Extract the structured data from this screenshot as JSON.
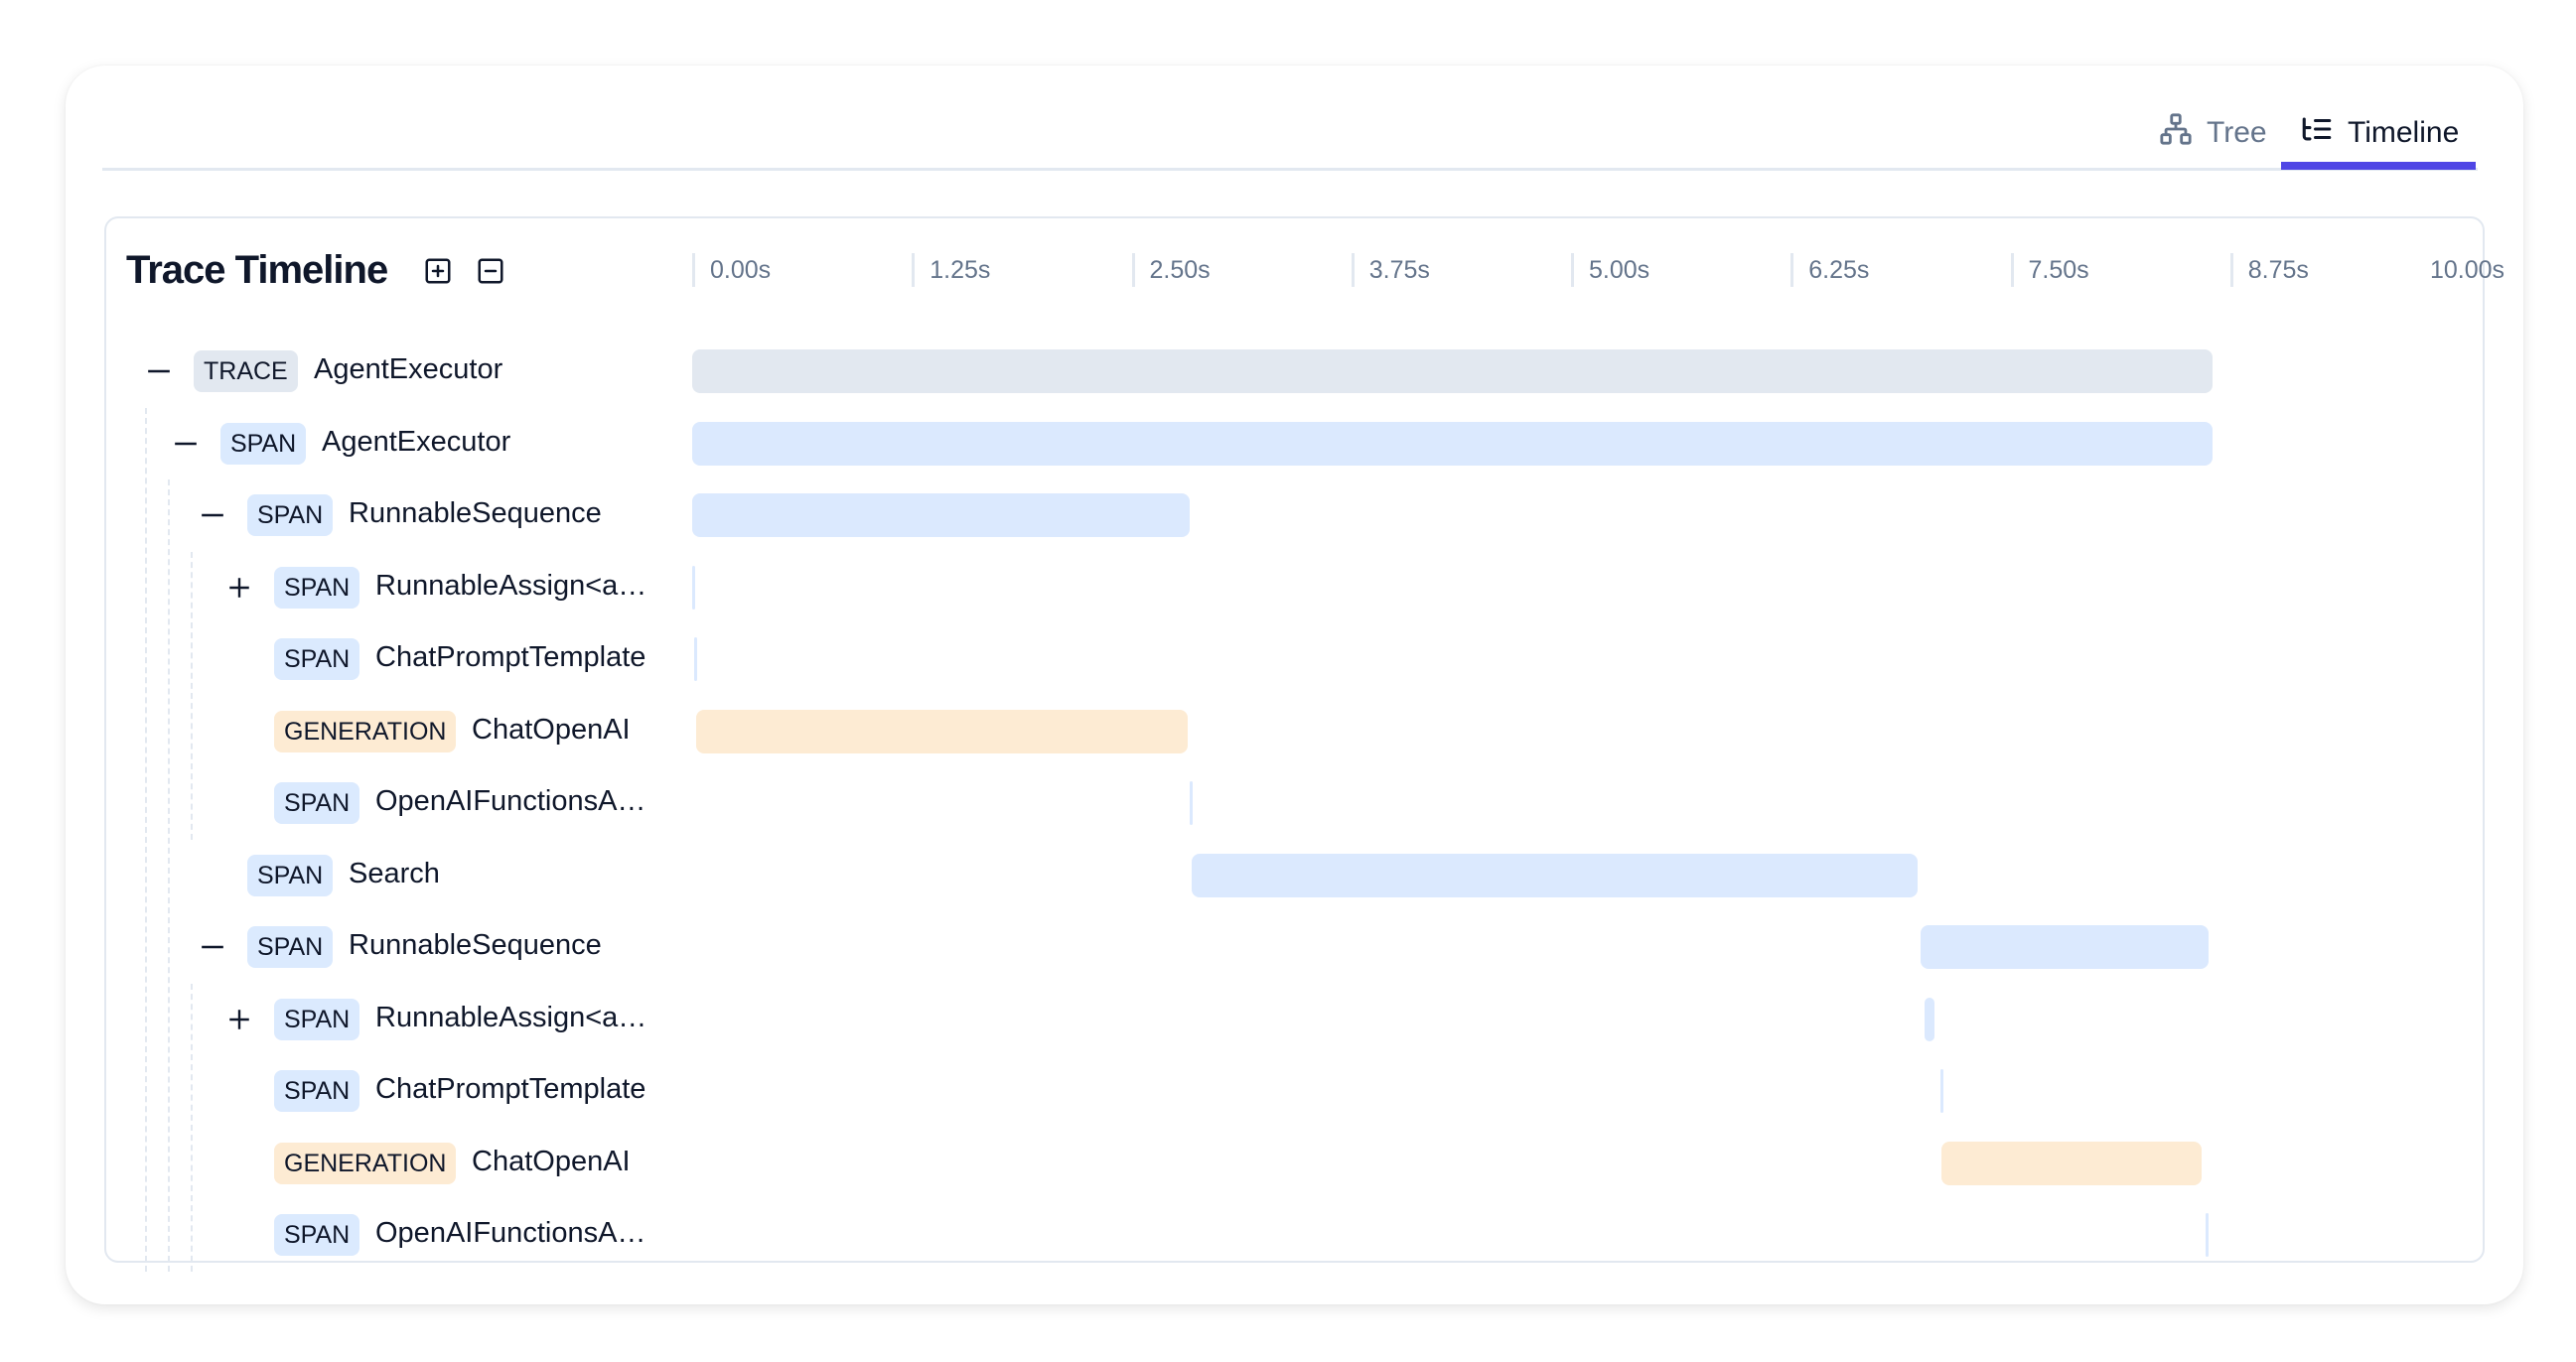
{
  "tabs": [
    {
      "label": "Tree",
      "icon": "tree-icon",
      "active": false
    },
    {
      "label": "Timeline",
      "icon": "timeline-icon",
      "active": true
    }
  ],
  "accent_color": "#4f46e5",
  "panel": {
    "title": "Trace Timeline",
    "expand_all_icon": "plus-square-icon",
    "collapse_all_icon": "minus-square-icon"
  },
  "chart_data": {
    "type": "gantt",
    "x_unit": "s",
    "xlim": [
      0,
      10
    ],
    "ticks": [
      "0.00s",
      "1.25s",
      "2.50s",
      "3.75s",
      "5.00s",
      "6.25s",
      "7.50s",
      "8.75s",
      "10.00s"
    ],
    "type_colors": {
      "TRACE": {
        "badge": "#e2e8f0",
        "bar": "#e2e8f0"
      },
      "SPAN": {
        "badge": "#dbeafe",
        "bar": "#dbe9fe"
      },
      "GENERATION": {
        "badge": "#fdebd3",
        "bar": "#fdebd3"
      }
    },
    "rows": [
      {
        "type": "TRACE",
        "name": "AgentExecutor",
        "depth": 0,
        "toggle": "collapse",
        "start": 0.0,
        "end": 8.65
      },
      {
        "type": "SPAN",
        "name": "AgentExecutor",
        "depth": 1,
        "toggle": "collapse",
        "start": 0.0,
        "end": 8.65
      },
      {
        "type": "SPAN",
        "name": "RunnableSequence",
        "depth": 2,
        "toggle": "collapse",
        "start": 0.0,
        "end": 2.83
      },
      {
        "type": "SPAN",
        "name": "RunnableAssign<a…",
        "depth": 3,
        "toggle": "expand",
        "start": 0.0,
        "end": 0.01
      },
      {
        "type": "SPAN",
        "name": "ChatPromptTemplate",
        "depth": 3,
        "toggle": null,
        "start": 0.01,
        "end": 0.02
      },
      {
        "type": "GENERATION",
        "name": "ChatOpenAI",
        "depth": 3,
        "toggle": null,
        "start": 0.02,
        "end": 2.82
      },
      {
        "type": "SPAN",
        "name": "OpenAIFunctionsA…",
        "depth": 3,
        "toggle": null,
        "start": 2.83,
        "end": 2.84
      },
      {
        "type": "SPAN",
        "name": "Search",
        "depth": 2,
        "toggle": null,
        "start": 2.84,
        "end": 6.97
      },
      {
        "type": "SPAN",
        "name": "RunnableSequence",
        "depth": 2,
        "toggle": "collapse",
        "start": 6.99,
        "end": 8.63
      },
      {
        "type": "SPAN",
        "name": "RunnableAssign<a…",
        "depth": 3,
        "toggle": "expand",
        "start": 7.01,
        "end": 7.07
      },
      {
        "type": "SPAN",
        "name": "ChatPromptTemplate",
        "depth": 3,
        "toggle": null,
        "start": 7.1,
        "end": 7.11
      },
      {
        "type": "GENERATION",
        "name": "ChatOpenAI",
        "depth": 3,
        "toggle": null,
        "start": 7.11,
        "end": 8.59
      },
      {
        "type": "SPAN",
        "name": "OpenAIFunctionsA…",
        "depth": 3,
        "toggle": null,
        "start": 8.61,
        "end": 8.62
      }
    ]
  }
}
